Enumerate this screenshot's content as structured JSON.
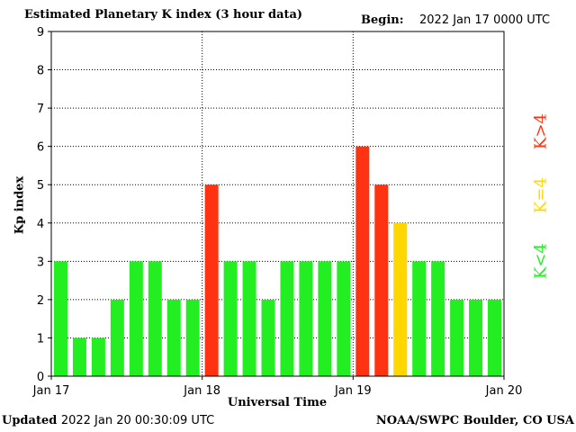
{
  "header": {
    "title": "Estimated Planetary K index (3 hour data)",
    "begin_label": "Begin:",
    "begin_value": "2022 Jan 17 0000 UTC"
  },
  "footer": {
    "updated_label": "Updated",
    "updated_value": "2022 Jan 20 00:30:09 UTC",
    "credit": "NOAA/SWPC Boulder, CO USA"
  },
  "legend": {
    "below": {
      "label": "K<4",
      "color": "#22ee22"
    },
    "equal": {
      "label": "K=4",
      "color": "#ffd700"
    },
    "above": {
      "label": "K>4",
      "color": "#ff3311"
    }
  },
  "chart_data": {
    "type": "bar",
    "ylabel": "Kp index",
    "xlabel": "Universal Time",
    "ylim": [
      0,
      9
    ],
    "yticks": [
      0,
      1,
      2,
      3,
      4,
      5,
      6,
      7,
      8,
      9
    ],
    "x_tick_labels": [
      "Jan 17",
      "Jan 18",
      "Jan 19",
      "Jan 20"
    ],
    "values": [
      3,
      1,
      1,
      2,
      3,
      3,
      2,
      2,
      5,
      3,
      3,
      2,
      3,
      3,
      3,
      3,
      6,
      5,
      4,
      3,
      3,
      2,
      2,
      2
    ],
    "grid": true
  }
}
